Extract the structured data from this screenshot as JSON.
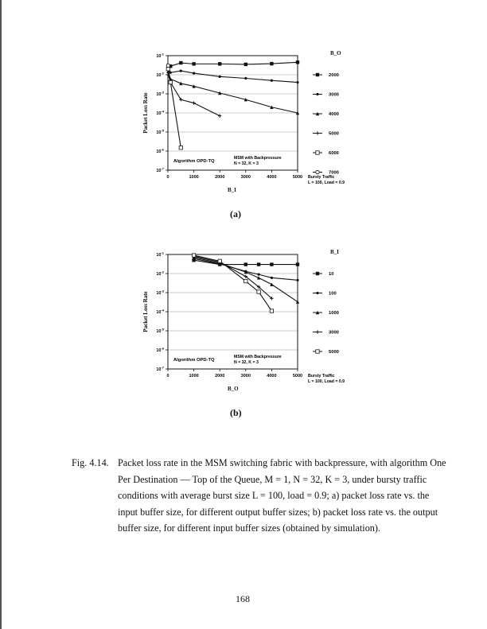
{
  "chart_data": [
    {
      "type": "line",
      "title": "(a)",
      "xlabel": "B_I",
      "ylabel": "Packet Loss Rate",
      "yscale": "log",
      "ylim": [
        1e-07,
        0.1
      ],
      "xlim": [
        0,
        5000
      ],
      "xticks": [
        "0",
        "1000",
        "2000",
        "3000",
        "4000",
        "5000"
      ],
      "yticks": [
        "10-1",
        "10-2",
        "10-3",
        "10-4",
        "10-5",
        "10-6",
        "10-7"
      ],
      "legend_title": "B_O",
      "legend_placement": "right",
      "annotations": [
        "Algorithm OPD-TQ",
        "MSM with Backpressure",
        "N = 32, K = 3",
        "Bursty Traffic",
        "L = 100, Load = 0.9"
      ],
      "series": [
        {
          "name": "2000",
          "marker": "square-filled",
          "x": [
            10,
            100,
            500,
            1000,
            2000,
            3000,
            4000,
            5000
          ],
          "y": [
            0.03,
            0.028,
            0.042,
            0.037,
            0.037,
            0.035,
            0.038,
            0.045
          ]
        },
        {
          "name": "3000",
          "marker": "dot",
          "x": [
            10,
            100,
            500,
            1000,
            2000,
            3000,
            4000,
            5000
          ],
          "y": [
            0.02,
            0.013,
            0.016,
            0.012,
            0.008,
            0.0065,
            0.005,
            0.004
          ]
        },
        {
          "name": "4000",
          "marker": "triangle",
          "x": [
            10,
            100,
            500,
            1000,
            2000,
            3000,
            4000,
            5000
          ],
          "y": [
            0.015,
            0.006,
            0.0035,
            0.0025,
            0.0011,
            0.0005,
            0.0002,
            0.0001
          ]
        },
        {
          "name": "5000",
          "marker": "plus",
          "x": [
            10,
            100,
            500,
            1000,
            2000
          ],
          "y": [
            0.01,
            0.004,
            0.0005,
            0.00033,
            7e-05
          ]
        },
        {
          "name": "6000",
          "marker": "square-open",
          "x": [
            10,
            100,
            500
          ],
          "y": [
            0.02,
            0.004,
            1.5e-06
          ]
        },
        {
          "name": "7000",
          "marker": "circle-open",
          "x": [
            10
          ],
          "y": [
            0.03
          ]
        }
      ]
    },
    {
      "type": "line",
      "title": "(b)",
      "xlabel": "B_O",
      "ylabel": "Packet Loss Rate",
      "yscale": "log",
      "ylim": [
        1e-07,
        0.1
      ],
      "xlim": [
        0,
        5000
      ],
      "xticks": [
        "0",
        "1000",
        "2000",
        "3000",
        "4000",
        "5000"
      ],
      "yticks": [
        "10-1",
        "10-2",
        "10-3",
        "10-4",
        "10-5",
        "10-6",
        "10-7"
      ],
      "legend_title": "B_I",
      "legend_placement": "right",
      "annotations": [
        "Algorithm OPD-TQ",
        "MSM with Backpressure",
        "N = 32, K = 3",
        "Bursty Traffic",
        "L = 100, Load = 0.9"
      ],
      "series": [
        {
          "name": "10",
          "marker": "square-filled",
          "x": [
            1000,
            2000,
            3000,
            3500,
            4000,
            5000
          ],
          "y": [
            0.05,
            0.03,
            0.03,
            0.03,
            0.03,
            0.03
          ]
        },
        {
          "name": "100",
          "marker": "dot",
          "x": [
            1000,
            2000,
            3000,
            3500,
            4000,
            5000
          ],
          "y": [
            0.06,
            0.032,
            0.013,
            0.009,
            0.006,
            0.0045
          ]
        },
        {
          "name": "1000",
          "marker": "triangle",
          "x": [
            1000,
            2000,
            3000,
            3500,
            4000,
            5000
          ],
          "y": [
            0.07,
            0.035,
            0.012,
            0.006,
            0.0027,
            0.00033
          ]
        },
        {
          "name": "3000",
          "marker": "plus",
          "x": [
            1000,
            2000,
            3000,
            3500,
            4000
          ],
          "y": [
            0.08,
            0.04,
            0.007,
            0.002,
            0.0005
          ]
        },
        {
          "name": "5000",
          "marker": "square-open",
          "x": [
            1000,
            2000,
            3000,
            3500,
            4000
          ],
          "y": [
            0.09,
            0.045,
            0.004,
            0.0011,
            0.00011
          ]
        }
      ]
    }
  ],
  "caption": {
    "number": "Fig. 4.14.",
    "text": "Packet loss rate in the MSM switching fabric with backpressure, with algorithm One Per Destination — Top of the Queue, M = 1, N = 32, K = 3, under bursty traffic conditions with average burst size L = 100, load = 0.9; a) packet loss rate vs. the input buffer size, for different output buffer sizes; b) packet loss rate vs. the output buffer size, for different input buffer sizes (obtained by simulation)."
  },
  "page_number": "168"
}
